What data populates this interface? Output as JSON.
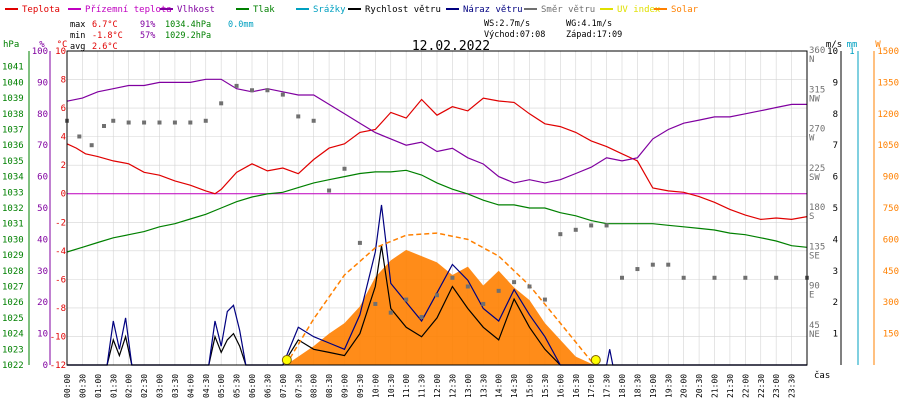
{
  "legend": [
    {
      "label": "Teplota",
      "color": "#e00000"
    },
    {
      "label": "Přízemní teplota",
      "color": "#c000c0"
    },
    {
      "label": "Vlhkost",
      "color": "#8000a0"
    },
    {
      "label": "Tlak",
      "color": "#008000"
    },
    {
      "label": "Srážky",
      "color": "#00a0c0"
    },
    {
      "label": "Rychlost větru",
      "color": "#000000"
    },
    {
      "label": "Náraz větru",
      "color": "#000080"
    },
    {
      "label": "Směr větru",
      "color": "#707070"
    },
    {
      "label": "UV index",
      "color": "#e0e000"
    },
    {
      "label": "Solar",
      "color": "#ff8000"
    }
  ],
  "stats": {
    "max_label": "max",
    "max_temp": "6.7°C",
    "max_hum": "91%",
    "max_press": "1034.4hPa",
    "rain": "0.0mm",
    "min_label": "min",
    "min_temp": "-1.8°C",
    "min_hum": "57%",
    "min_press": "1029.2hPa",
    "avg_label": "avg",
    "avg_temp": "2.6°C",
    "ws": "WS:2.7m/s",
    "wg": "WG:4.1m/s",
    "sunrise": "Východ:07:08",
    "sunset": "Západ:17:09"
  },
  "chart_data": {
    "type": "line",
    "title": "12.02.2022",
    "xlabel": "čas",
    "x_ticks": [
      "00:00",
      "00:30",
      "01:00",
      "01:30",
      "02:00",
      "02:30",
      "03:00",
      "03:30",
      "04:00",
      "04:30",
      "05:00",
      "05:30",
      "06:00",
      "06:30",
      "07:00",
      "07:30",
      "08:00",
      "08:30",
      "09:00",
      "09:30",
      "10:00",
      "10:30",
      "11:00",
      "11:30",
      "12:00",
      "12:30",
      "13:00",
      "13:30",
      "14:00",
      "14:30",
      "15:00",
      "15:30",
      "16:00",
      "16:30",
      "17:00",
      "17:30",
      "18:00",
      "18:30",
      "19:00",
      "19:30",
      "20:00",
      "20:30",
      "21:00",
      "21:30",
      "22:00",
      "22:30",
      "23:00",
      "23:30"
    ],
    "axes": {
      "hpa": {
        "unit": "hPa",
        "range": [
          1022,
          1042
        ],
        "ticks": [
          "1022",
          "1023",
          "1024",
          "1025",
          "1026",
          "1027",
          "1028",
          "1029",
          "1030",
          "1031",
          "1032",
          "1033",
          "1034",
          "1035",
          "1036",
          "1037",
          "1038",
          "1039",
          "1040",
          "1041"
        ],
        "color": "#008000"
      },
      "pct": {
        "unit": "%",
        "range": [
          0,
          100
        ],
        "ticks": [
          "0",
          "10",
          "20",
          "30",
          "40",
          "50",
          "60",
          "70",
          "80",
          "90",
          "100"
        ],
        "color": "#8000a0"
      },
      "temp": {
        "unit": "°C",
        "range": [
          -12,
          10
        ],
        "ticks": [
          "-12",
          "-10",
          "-8",
          "-6",
          "-4",
          "-2",
          "0",
          "2",
          "4",
          "6",
          "8",
          "10"
        ],
        "color": "#e00000"
      },
      "dir": {
        "unit": "°",
        "range": [
          0,
          360
        ],
        "ticks": [
          {
            "v": "45",
            "d": "NE"
          },
          {
            "v": "90",
            "d": "E"
          },
          {
            "v": "135",
            "d": "SE"
          },
          {
            "v": "180",
            "d": "S"
          },
          {
            "v": "225",
            "d": "SW"
          },
          {
            "v": "270",
            "d": "W"
          },
          {
            "v": "315",
            "d": "NW"
          },
          {
            "v": "360",
            "d": "N"
          }
        ],
        "color": "#707070"
      },
      "ms": {
        "unit": "m/s",
        "range": [
          0,
          10
        ],
        "ticks": [
          "1",
          "2",
          "3",
          "4",
          "5",
          "6",
          "7",
          "8",
          "9",
          "10"
        ],
        "color": "#000000"
      },
      "mm": {
        "unit": "mm",
        "range": [
          0,
          1
        ],
        "ticks": [
          "1"
        ],
        "color": "#00a0c0"
      },
      "w": {
        "unit": "W",
        "range": [
          0,
          1500
        ],
        "ticks": [
          "150",
          "300",
          "450",
          "600",
          "750",
          "900",
          "1050",
          "1200",
          "1350",
          "1500"
        ],
        "color": "#ff8000"
      }
    },
    "series": [
      {
        "name": "Teplota",
        "axis": "temp",
        "color": "#e00000",
        "x": [
          0,
          0.3,
          0.6,
          1.0,
          1.5,
          2.0,
          2.5,
          3.0,
          3.5,
          4.0,
          4.5,
          4.8,
          5.0,
          5.5,
          6.0,
          6.5,
          7.0,
          7.5,
          8.0,
          8.5,
          9.0,
          9.5,
          10.0,
          10.5,
          11.0,
          11.5,
          12.0,
          12.5,
          13.0,
          13.5,
          14.0,
          14.5,
          15.0,
          15.5,
          16.0,
          16.5,
          17.0,
          17.5,
          18.0,
          18.5,
          19.0,
          19.5,
          20.0,
          20.5,
          21.0,
          21.5,
          22.0,
          22.5,
          23.0,
          23.5,
          24.0
        ],
        "values": [
          3.5,
          3.2,
          2.8,
          2.6,
          2.3,
          2.1,
          1.5,
          1.3,
          0.9,
          0.6,
          0.2,
          0.0,
          0.3,
          1.5,
          2.1,
          1.6,
          1.8,
          1.4,
          2.4,
          3.2,
          3.5,
          4.3,
          4.5,
          5.7,
          5.3,
          6.6,
          5.5,
          6.1,
          5.8,
          6.7,
          6.5,
          6.4,
          5.6,
          4.9,
          4.7,
          4.3,
          3.7,
          3.3,
          2.8,
          2.3,
          0.4,
          0.2,
          0.1,
          -0.2,
          -0.6,
          -1.1,
          -1.5,
          -1.8,
          -1.7,
          -1.8,
          -1.6
        ]
      },
      {
        "name": "Vlhkost",
        "axis": "pct",
        "color": "#8000a0",
        "x": [
          0,
          0.5,
          1.0,
          1.5,
          2.0,
          2.5,
          3.0,
          3.5,
          4.0,
          4.5,
          5.0,
          5.5,
          6.0,
          6.5,
          7.0,
          7.5,
          8.0,
          8.5,
          9.0,
          9.5,
          10.0,
          10.5,
          11.0,
          11.5,
          12.0,
          12.5,
          13.0,
          13.5,
          14.0,
          14.5,
          15.0,
          15.5,
          16.0,
          16.5,
          17.0,
          17.5,
          18.0,
          18.5,
          19.0,
          19.5,
          20.0,
          20.5,
          21.0,
          21.5,
          22.0,
          22.5,
          23.0,
          23.5,
          24.0
        ],
        "values": [
          84,
          85,
          87,
          88,
          89,
          89,
          90,
          90,
          90,
          91,
          91,
          88,
          87,
          88,
          87,
          86,
          86,
          83,
          80,
          77,
          74,
          72,
          70,
          71,
          68,
          69,
          66,
          64,
          60,
          58,
          59,
          58,
          59,
          61,
          63,
          66,
          65,
          66,
          72,
          75,
          77,
          78,
          79,
          79,
          80,
          81,
          82,
          83,
          83
        ]
      },
      {
        "name": "Tlak",
        "axis": "hpa",
        "color": "#008000",
        "x": [
          0,
          0.5,
          1.0,
          1.5,
          2.0,
          2.5,
          3.0,
          3.5,
          4.0,
          4.5,
          5.0,
          5.5,
          6.0,
          6.5,
          7.0,
          7.5,
          8.0,
          8.5,
          9.0,
          9.5,
          10.0,
          10.5,
          11.0,
          11.5,
          12.0,
          12.5,
          13.0,
          13.5,
          14.0,
          14.5,
          15.0,
          15.5,
          16.0,
          16.5,
          17.0,
          17.5,
          18.0,
          18.5,
          19.0,
          19.5,
          20.0,
          20.5,
          21.0,
          21.5,
          22.0,
          22.5,
          23.0,
          23.5,
          24.0
        ],
        "values": [
          1029.2,
          1029.5,
          1029.8,
          1030.1,
          1030.3,
          1030.5,
          1030.8,
          1031.0,
          1031.3,
          1031.6,
          1032.0,
          1032.4,
          1032.7,
          1032.9,
          1033.0,
          1033.3,
          1033.6,
          1033.8,
          1034.0,
          1034.2,
          1034.3,
          1034.3,
          1034.4,
          1034.1,
          1033.6,
          1033.2,
          1032.9,
          1032.5,
          1032.2,
          1032.2,
          1032.0,
          1032.0,
          1031.7,
          1031.5,
          1031.2,
          1031.0,
          1031.0,
          1031.0,
          1031.0,
          1030.9,
          1030.8,
          1030.7,
          1030.6,
          1030.4,
          1030.3,
          1030.1,
          1029.9,
          1029.6,
          1029.5
        ]
      },
      {
        "name": "Směr větru",
        "axis": "dir",
        "color": "#707070",
        "style": "points",
        "x": [
          0,
          0.4,
          0.8,
          1.2,
          1.5,
          2.0,
          2.5,
          3.0,
          3.5,
          4.0,
          4.5,
          5.0,
          5.5,
          6.0,
          6.5,
          7.0,
          7.5,
          8.0,
          8.5,
          9.0,
          9.5,
          10.0,
          10.5,
          11.0,
          11.5,
          12.0,
          12.5,
          13.0,
          13.5,
          14.0,
          14.5,
          15.0,
          15.5,
          16.0,
          16.5,
          17.0,
          17.5,
          18.0,
          18.5,
          19.0,
          19.5,
          20.0,
          21.0,
          22.0,
          23.0,
          24.0
        ],
        "values": [
          280,
          262,
          252,
          274,
          280,
          278,
          278,
          278,
          278,
          278,
          280,
          300,
          320,
          315,
          315,
          310,
          285,
          280,
          200,
          225,
          140,
          70,
          60,
          75,
          55,
          80,
          100,
          90,
          70,
          85,
          95,
          90,
          75,
          150,
          155,
          160,
          160,
          100,
          110,
          115,
          115,
          100,
          100,
          100,
          100,
          100
        ]
      },
      {
        "name": "Rychlost větru",
        "axis": "ms",
        "color": "#000000",
        "x": [
          0,
          1.3,
          1.5,
          1.7,
          1.9,
          2.1,
          4.6,
          4.8,
          5.0,
          5.2,
          5.4,
          5.6,
          5.8,
          7.0,
          7.5,
          8.0,
          8.5,
          9.0,
          9.5,
          10.0,
          10.2,
          10.5,
          11.0,
          11.5,
          12.0,
          12.5,
          13.0,
          13.5,
          14.0,
          14.5,
          15.0,
          15.5,
          16.0,
          24.0
        ],
        "values": [
          0,
          0,
          0.8,
          0.3,
          0.9,
          0,
          0,
          0.9,
          0.4,
          0.8,
          1.0,
          0.6,
          0,
          0,
          0.8,
          0.5,
          0.4,
          0.3,
          1.0,
          2.5,
          3.8,
          1.8,
          1.2,
          0.9,
          1.5,
          2.5,
          1.8,
          1.2,
          0.8,
          2.1,
          1.2,
          0.5,
          0,
          0
        ]
      },
      {
        "name": "Náraz větru",
        "axis": "ms",
        "color": "#000080",
        "x": [
          0,
          1.3,
          1.5,
          1.7,
          1.9,
          2.1,
          4.6,
          4.8,
          5.0,
          5.2,
          5.4,
          5.6,
          5.8,
          7.0,
          7.5,
          8.0,
          8.5,
          9.0,
          9.5,
          10.0,
          10.2,
          10.5,
          11.0,
          11.5,
          12.0,
          12.5,
          13.0,
          13.5,
          14.0,
          14.5,
          15.0,
          15.5,
          16.0,
          17.5,
          17.6,
          17.7,
          24.0
        ],
        "values": [
          0,
          0,
          1.4,
          0.5,
          1.5,
          0,
          0,
          1.4,
          0.6,
          1.7,
          1.9,
          1.1,
          0,
          0,
          1.2,
          0.9,
          0.7,
          0.5,
          1.6,
          3.6,
          5.1,
          2.6,
          2.0,
          1.4,
          2.3,
          3.2,
          2.7,
          1.8,
          1.4,
          2.4,
          1.6,
          0.9,
          0,
          0,
          0.5,
          0,
          0
        ]
      },
      {
        "name": "Solar",
        "axis": "w",
        "color": "#ff8000",
        "style": "area",
        "x": [
          7.1,
          7.5,
          8.0,
          8.5,
          9.0,
          9.5,
          10.0,
          10.5,
          11.0,
          11.5,
          12.0,
          12.5,
          13.0,
          13.5,
          14.0,
          14.5,
          15.0,
          15.5,
          16.0,
          16.5,
          17.1
        ],
        "values": [
          0,
          40,
          90,
          150,
          200,
          280,
          420,
          500,
          550,
          520,
          490,
          430,
          470,
          380,
          450,
          370,
          310,
          200,
          120,
          40,
          0
        ]
      },
      {
        "name": "Solar (teoretický)",
        "axis": "w",
        "color": "#ff8000",
        "style": "dashed",
        "x": [
          7.1,
          8.0,
          9.0,
          10.0,
          11.0,
          12.0,
          13.0,
          14.0,
          15.0,
          16.0,
          17.1
        ],
        "values": [
          0,
          220,
          430,
          560,
          620,
          630,
          600,
          520,
          380,
          200,
          0
        ]
      }
    ],
    "zero_line": {
      "axis": "temp",
      "value": 0,
      "color": "#c000c0"
    },
    "sun_markers": {
      "sunrise_hour": 7.13,
      "sunset_hour": 17.15,
      "color": "#ffff00"
    }
  }
}
